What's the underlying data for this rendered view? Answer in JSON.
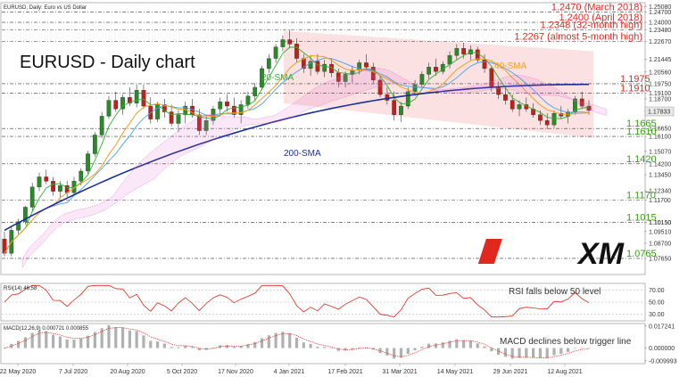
{
  "chart_data": [
    {
      "type": "candlestick",
      "title_small": "EURUSD, Daily: Euro vs US Dollar",
      "title": "EURUSD - Daily chart",
      "x_ticks": [
        "22 May 2020",
        "7 Jul 2020",
        "20 Aug 2020",
        "5 Oct 2020",
        "17 Nov 2020",
        "4 Jan 2021",
        "17 Feb 2021",
        "31 Mar 2021",
        "14 May 2021",
        "29 Jun 2021",
        "12 Aug 2021"
      ],
      "y_ticks": [
        "1.25080",
        "1.24700",
        "1.24000",
        "1.23480",
        "1.22670",
        "1.21445",
        "1.20560",
        "1.19750",
        "1.19100",
        "1.18700",
        "1.17833",
        "1.16650",
        "1.16100",
        "1.15070",
        "1.14200",
        "1.13450",
        "1.12340",
        "1.11700",
        "1.10150",
        "1.10150",
        "1.09510",
        "1.08700",
        "1.07650"
      ],
      "ylim": [
        1.066,
        1.253
      ],
      "candles_approx": [
        [
          1.09,
          1.095,
          1.078,
          1.08
        ],
        [
          1.08,
          1.099,
          1.078,
          1.096
        ],
        [
          1.096,
          1.104,
          1.093,
          1.102
        ],
        [
          1.102,
          1.113,
          1.1,
          1.112
        ],
        [
          1.112,
          1.129,
          1.109,
          1.126
        ],
        [
          1.126,
          1.136,
          1.123,
          1.133
        ],
        [
          1.133,
          1.138,
          1.128,
          1.13
        ],
        [
          1.13,
          1.133,
          1.12,
          1.123
        ],
        [
          1.123,
          1.13,
          1.118,
          1.127
        ],
        [
          1.127,
          1.13,
          1.119,
          1.122
        ],
        [
          1.122,
          1.133,
          1.12,
          1.13
        ],
        [
          1.13,
          1.139,
          1.127,
          1.137
        ],
        [
          1.137,
          1.151,
          1.135,
          1.149
        ],
        [
          1.149,
          1.164,
          1.147,
          1.162
        ],
        [
          1.162,
          1.178,
          1.16,
          1.175
        ],
        [
          1.175,
          1.189,
          1.173,
          1.186
        ],
        [
          1.186,
          1.192,
          1.178,
          1.18
        ],
        [
          1.18,
          1.19,
          1.176,
          1.188
        ],
        [
          1.188,
          1.195,
          1.182,
          1.184
        ],
        [
          1.184,
          1.197,
          1.181,
          1.193
        ],
        [
          1.193,
          1.197,
          1.18,
          1.182
        ],
        [
          1.182,
          1.188,
          1.17,
          1.173
        ],
        [
          1.173,
          1.185,
          1.171,
          1.183
        ],
        [
          1.183,
          1.187,
          1.174,
          1.178
        ],
        [
          1.178,
          1.183,
          1.168,
          1.17
        ],
        [
          1.17,
          1.179,
          1.164,
          1.176
        ],
        [
          1.176,
          1.185,
          1.17,
          1.182
        ],
        [
          1.182,
          1.187,
          1.174,
          1.176
        ],
        [
          1.176,
          1.18,
          1.162,
          1.165
        ],
        [
          1.165,
          1.176,
          1.162,
          1.172
        ],
        [
          1.172,
          1.182,
          1.169,
          1.18
        ],
        [
          1.18,
          1.188,
          1.175,
          1.185
        ],
        [
          1.185,
          1.19,
          1.178,
          1.182
        ],
        [
          1.182,
          1.188,
          1.174,
          1.176
        ],
        [
          1.176,
          1.186,
          1.17,
          1.183
        ],
        [
          1.183,
          1.192,
          1.18,
          1.189
        ],
        [
          1.189,
          1.198,
          1.186,
          1.195
        ],
        [
          1.195,
          1.21,
          1.193,
          1.208
        ],
        [
          1.208,
          1.218,
          1.205,
          1.215
        ],
        [
          1.215,
          1.225,
          1.212,
          1.223
        ],
        [
          1.223,
          1.231,
          1.22,
          1.228
        ],
        [
          1.228,
          1.235,
          1.222,
          1.225
        ],
        [
          1.225,
          1.229,
          1.212,
          1.215
        ],
        [
          1.215,
          1.218,
          1.205,
          1.208
        ],
        [
          1.208,
          1.217,
          1.203,
          1.213
        ],
        [
          1.213,
          1.218,
          1.204,
          1.206
        ],
        [
          1.206,
          1.214,
          1.202,
          1.211
        ],
        [
          1.211,
          1.215,
          1.202,
          1.205
        ],
        [
          1.205,
          1.208,
          1.195,
          1.199
        ],
        [
          1.199,
          1.206,
          1.195,
          1.204
        ],
        [
          1.204,
          1.21,
          1.198,
          1.207
        ],
        [
          1.207,
          1.214,
          1.204,
          1.212
        ],
        [
          1.212,
          1.218,
          1.207,
          1.209
        ],
        [
          1.209,
          1.212,
          1.198,
          1.2
        ],
        [
          1.2,
          1.203,
          1.188,
          1.19
        ],
        [
          1.19,
          1.195,
          1.183,
          1.186
        ],
        [
          1.186,
          1.192,
          1.172,
          1.176
        ],
        [
          1.176,
          1.185,
          1.171,
          1.182
        ],
        [
          1.182,
          1.195,
          1.18,
          1.192
        ],
        [
          1.192,
          1.2,
          1.189,
          1.197
        ],
        [
          1.197,
          1.206,
          1.195,
          1.204
        ],
        [
          1.204,
          1.212,
          1.201,
          1.209
        ],
        [
          1.209,
          1.215,
          1.203,
          1.206
        ],
        [
          1.206,
          1.213,
          1.204,
          1.211
        ],
        [
          1.211,
          1.22,
          1.208,
          1.217
        ],
        [
          1.217,
          1.225,
          1.214,
          1.222
        ],
        [
          1.222,
          1.226,
          1.215,
          1.218
        ],
        [
          1.218,
          1.224,
          1.214,
          1.221
        ],
        [
          1.221,
          1.223,
          1.212,
          1.214
        ],
        [
          1.214,
          1.218,
          1.205,
          1.208
        ],
        [
          1.208,
          1.21,
          1.192,
          1.195
        ],
        [
          1.195,
          1.199,
          1.187,
          1.19
        ],
        [
          1.19,
          1.195,
          1.183,
          1.186
        ],
        [
          1.186,
          1.19,
          1.178,
          1.18
        ],
        [
          1.18,
          1.186,
          1.175,
          1.183
        ],
        [
          1.183,
          1.188,
          1.178,
          1.18
        ],
        [
          1.18,
          1.184,
          1.174,
          1.176
        ],
        [
          1.176,
          1.179,
          1.169,
          1.172
        ],
        [
          1.172,
          1.177,
          1.166,
          1.169
        ],
        [
          1.169,
          1.179,
          1.167,
          1.177
        ],
        [
          1.177,
          1.182,
          1.173,
          1.175
        ],
        [
          1.175,
          1.18,
          1.17,
          1.178
        ],
        [
          1.178,
          1.189,
          1.176,
          1.187
        ],
        [
          1.187,
          1.192,
          1.18,
          1.182
        ],
        [
          1.182,
          1.186,
          1.176,
          1.179
        ]
      ],
      "horizontal_levels": [
        {
          "value": 1.247,
          "label": "1.2470 (March 2018)",
          "color": "#e0281e"
        },
        {
          "value": 1.24,
          "label": "1.2400 (April 2018)",
          "color": "#e0281e"
        },
        {
          "value": 1.2348,
          "label": "1.2348 (32-month high)",
          "color": "#e0281e"
        },
        {
          "value": 1.2267,
          "label": "1.2267 (almost 5-month high)",
          "color": "#e0281e"
        },
        {
          "value": 1.1975,
          "label": "1.1975",
          "color": "#e0281e"
        },
        {
          "value": 1.191,
          "label": "1.1910",
          "color": "#e0281e"
        },
        {
          "value": 1.1665,
          "label": "1.1665",
          "color": "#3a9a1a"
        },
        {
          "value": 1.161,
          "label": "1.1610",
          "color": "#3a9a1a"
        },
        {
          "value": 1.142,
          "label": "1.1420",
          "color": "#3a9a1a"
        },
        {
          "value": 1.117,
          "label": "1.1170",
          "color": "#3a9a1a"
        },
        {
          "value": 1.1015,
          "label": "1.1015",
          "color": "#3a9a1a"
        },
        {
          "value": 1.0765,
          "label": "1.0765",
          "color": "#3a9a1a"
        }
      ],
      "annotations": [
        "20-SMA",
        "40-SMA",
        "200-SMA"
      ],
      "series_colors": {
        "sma20": "#2db32d",
        "sma40": "#f0a020",
        "sma200": "#1a2f9a",
        "ma_blue": "#4aa0e8",
        "ichimoku_cloud": "#e060c8",
        "channel_fill": "#f8c8c8"
      },
      "last_price_label": "1.17833"
    },
    {
      "type": "line",
      "title": "RSI(14) 46.58",
      "y_ticks": [
        "70.00",
        "50.00",
        "30.00"
      ],
      "ylim": [
        20,
        80
      ],
      "annotation": "RSI falls below 50 level",
      "series_colors": {
        "rsi": "#e0281e"
      }
    },
    {
      "type": "bar",
      "title": "MACD(12,26,9) 0.000721 0.000855",
      "y_ticks": [
        "0.017241",
        "0.000000",
        "-0.009993"
      ],
      "ylim": [
        -0.0115,
        0.0185
      ],
      "annotation": "MACD declines below trigger line",
      "series_colors": {
        "histogram": "#b0b0b0",
        "signal": "#e0281e"
      }
    }
  ],
  "logo_text": "XM"
}
